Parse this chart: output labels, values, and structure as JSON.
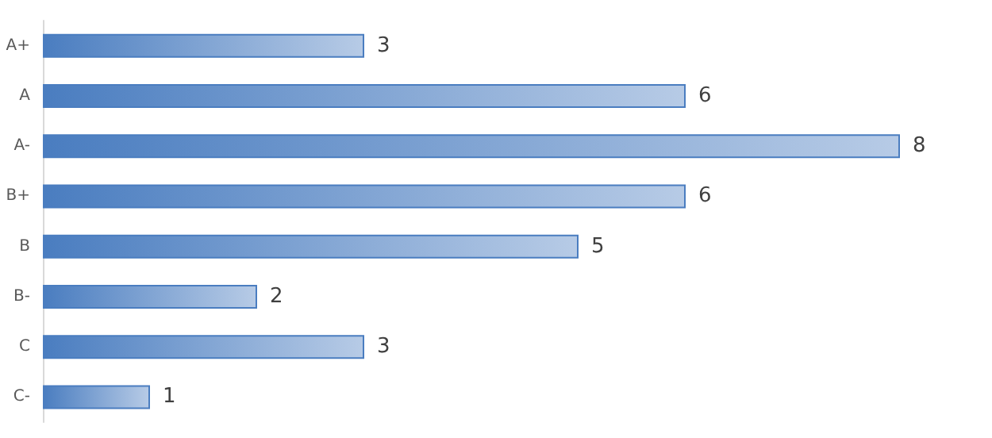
{
  "chart_data": {
    "type": "bar",
    "orientation": "horizontal",
    "categories": [
      "A+",
      "A",
      "A-",
      "B+",
      "B",
      "B-",
      "C",
      "C-"
    ],
    "values": [
      3,
      6,
      8,
      6,
      5,
      2,
      3,
      1
    ],
    "color": "#4a7dc0",
    "data_labels": true
  }
}
